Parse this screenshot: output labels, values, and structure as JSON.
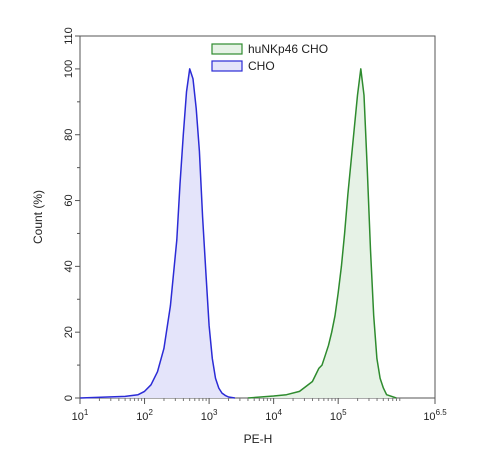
{
  "chart_data": {
    "type": "area",
    "title": "",
    "xlabel": "PE-H",
    "ylabel": "Count  (%)",
    "x_scale": "log10",
    "xlim": [
      10,
      3162277.66
    ],
    "ylim": [
      0,
      110
    ],
    "x_ticks": [
      {
        "value": 10,
        "label": "10",
        "sup": "1"
      },
      {
        "value": 100,
        "label": "10",
        "sup": "2"
      },
      {
        "value": 1000,
        "label": "10",
        "sup": "3"
      },
      {
        "value": 10000,
        "label": "10",
        "sup": "4"
      },
      {
        "value": 100000,
        "label": "10",
        "sup": "5"
      },
      {
        "value": 3162277.66,
        "label": "10",
        "sup": "6.5"
      }
    ],
    "y_ticks": [
      "0",
      "20",
      "40",
      "60",
      "80",
      "100",
      "110"
    ],
    "y_tick_values": [
      0,
      20,
      40,
      60,
      80,
      100,
      110
    ],
    "grid": false,
    "legend_position": "top-center",
    "series": [
      {
        "name": "huNKp46 CHO",
        "color": "#2e8b2e",
        "fill": "#e6f2e6",
        "x": [
          3981,
          6310,
          10000,
          15850,
          25120,
          31620,
          39810,
          44670,
          50120,
          56230,
          63100,
          70790,
          79430,
          89130,
          100000,
          112200,
          125900,
          141300,
          158500,
          177800,
          199500,
          223900,
          251200,
          281800,
          316200,
          354800,
          398100,
          446700,
          501200,
          562300,
          794300
        ],
        "y": [
          0,
          0.3,
          0.6,
          1,
          2,
          3.5,
          5,
          7,
          9,
          10,
          13,
          16,
          20,
          25,
          32,
          40,
          50,
          62,
          72,
          82,
          92,
          100,
          92,
          70,
          45,
          25,
          12,
          6,
          3,
          1,
          0
        ]
      },
      {
        "name": "CHO",
        "color": "#2b2bd6",
        "fill": "#e4e4fa",
        "x": [
          10,
          50.1,
          79.4,
          100,
          125.9,
          158.5,
          199.5,
          251.2,
          316.2,
          354.8,
          398.1,
          446.7,
          501.2,
          562.3,
          631,
          707.9,
          794.3,
          891.3,
          1000,
          1122,
          1259,
          1413,
          1585,
          1778,
          1995,
          2512
        ],
        "y": [
          0,
          0.5,
          1,
          2,
          4,
          8,
          15,
          28,
          48,
          65,
          80,
          93,
          100,
          97,
          88,
          75,
          55,
          38,
          22,
          12,
          6,
          3,
          1.5,
          0.8,
          0.3,
          0
        ]
      }
    ]
  }
}
